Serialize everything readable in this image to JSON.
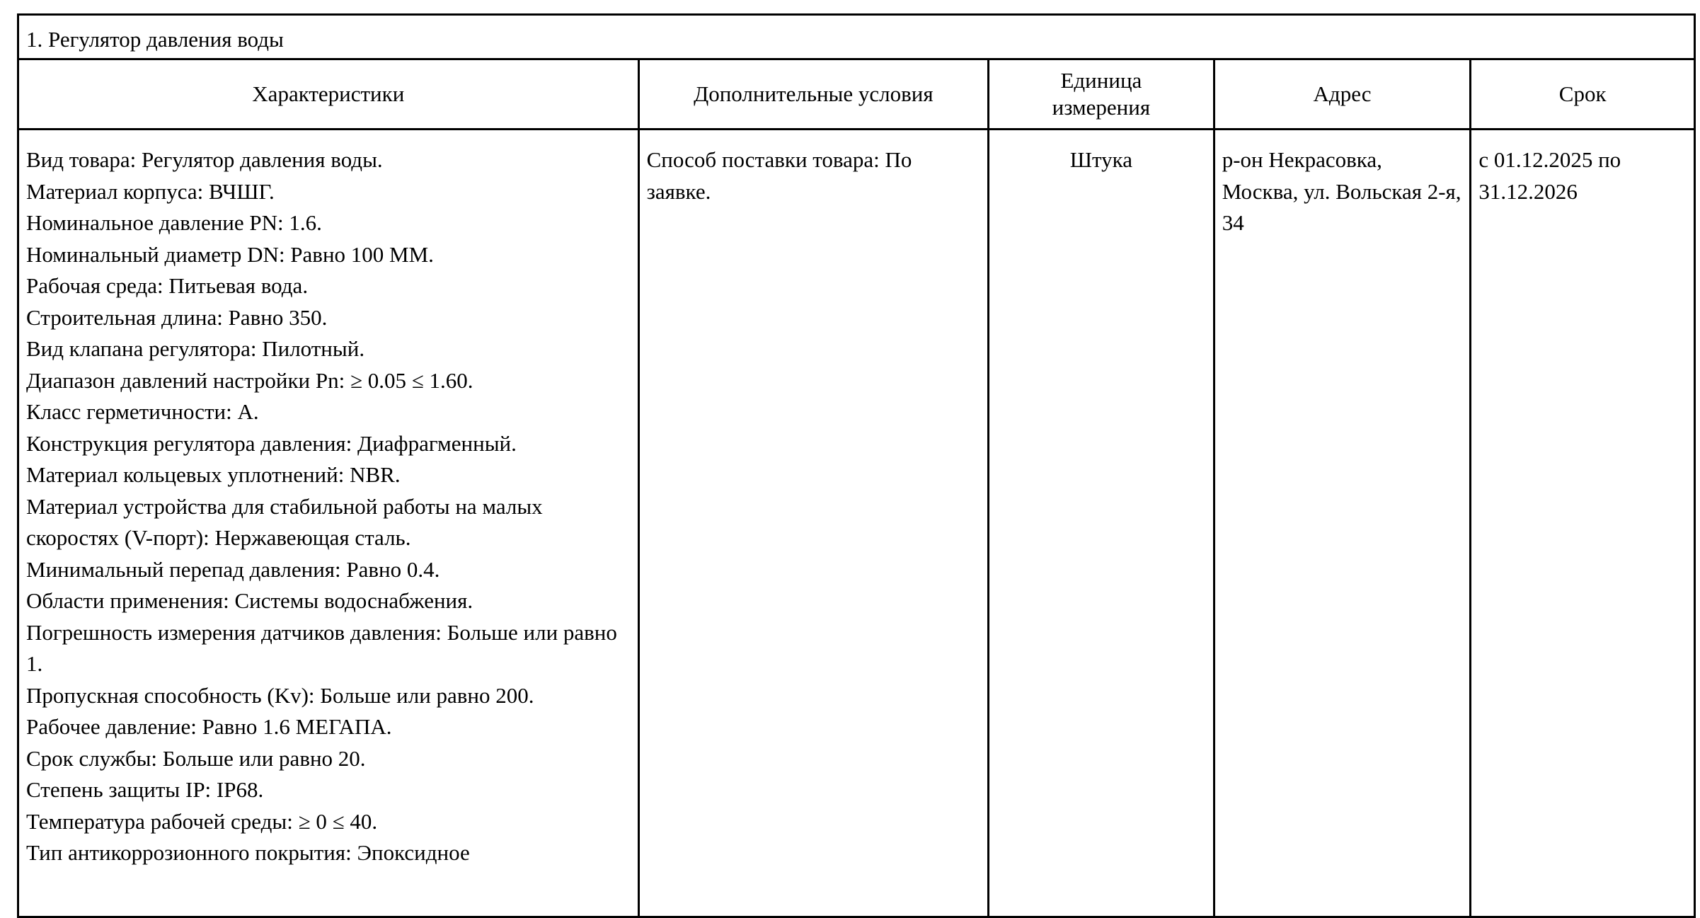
{
  "section_title": "1. Регулятор давления воды",
  "columns": [
    "Характеристики",
    "Дополнительные условия",
    "Единица измерения",
    "Адрес",
    "Срок"
  ],
  "row": {
    "characteristics": [
      "Вид товара: Регулятор давления воды.",
      "Материал корпуса: ВЧШГ.",
      "Номинальное давление PN: 1.6.",
      "Номинальный диаметр DN: Равно 100 ММ.",
      "Рабочая среда: Питьевая вода.",
      "Строительная длина: Равно 350.",
      "Вид клапана регулятора: Пилотный.",
      "Диапазон давлений настройки Pn: ≥ 0.05 ≤ 1.60.",
      "Класс герметичности: А.",
      "Конструкция регулятора давления: Диафрагменный.",
      "Материал кольцевых уплотнений: NBR.",
      "Материал устройства для стабильной работы на малых скоростях (V-порт): Нержавеющая сталь.",
      "Минимальный перепад давления: Равно 0.4.",
      "Области применения: Системы водоснабжения.",
      "Погрешность измерения датчиков давления: Больше или равно 1.",
      "Пропускная способность (Kv): Больше или равно 200.",
      "Рабочее давление: Равно 1.6 МЕГАПА.",
      "Срок службы: Больше или равно 20.",
      "Степень защиты IP: IP68.",
      "Температура рабочей среды: ≥ 0 ≤ 40.",
      "Тип антикоррозионного покрытия: Эпоксидное"
    ],
    "conditions": "Способ поставки товара: По заявке.",
    "unit": "Штука",
    "address": "р-он Некрасовка, Москва, ул. Вольская 2-я, 34",
    "term": "с 01.12.2025 по 31.12.2026"
  }
}
